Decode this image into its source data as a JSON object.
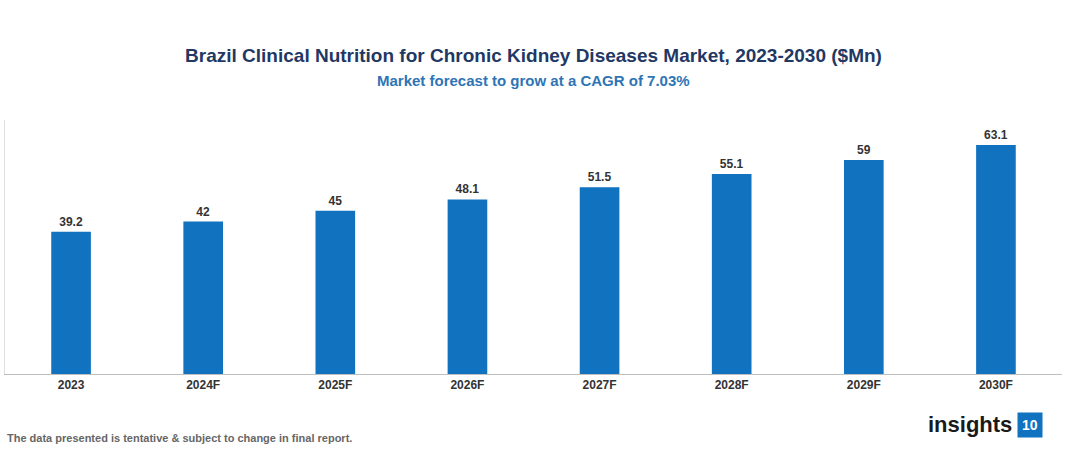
{
  "chart_data": {
    "type": "bar",
    "title": "Brazil Clinical Nutrition for Chronic Kidney Diseases Market, 2023-2030 ($Mn)",
    "subtitle": "Market forecast to grow at a CAGR of 7.03%",
    "categories": [
      "2023",
      "2024F",
      "2025F",
      "2026F",
      "2027F",
      "2028F",
      "2029F",
      "2030F"
    ],
    "values": [
      39.2,
      42,
      45,
      48.1,
      51.5,
      55.1,
      59,
      63.1
    ],
    "color": "#1172c0",
    "ylim": [
      0,
      70
    ],
    "yticks": [],
    "grid": false,
    "data_labels": true,
    "tick_labels": "x",
    "footnote": "The data presented is tentative & subject to change in final report.",
    "logo": {
      "text": "insights",
      "badge": "10"
    }
  }
}
